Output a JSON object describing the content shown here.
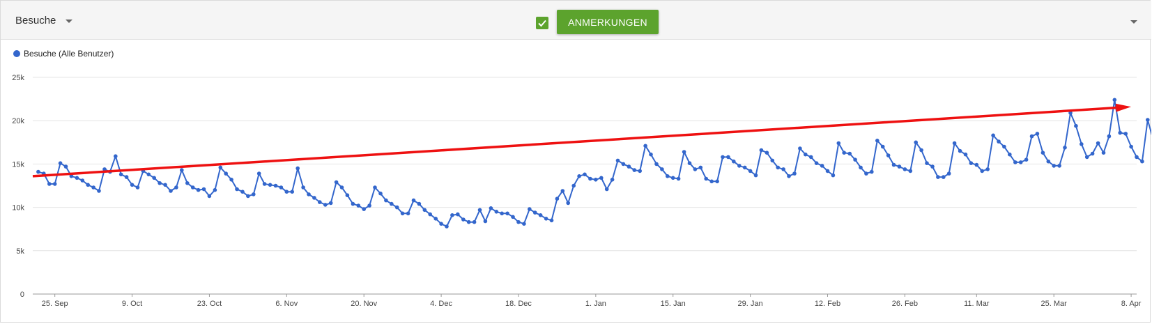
{
  "toolbar": {
    "metric": "Besuche",
    "checkbox_checked": true,
    "annotations_label": "ANMERKUNGEN",
    "accent_color": "#5ca32d"
  },
  "legend": {
    "label": "Besuche (Alle Benutzer)",
    "color": "#3366cc"
  },
  "chart_data": {
    "type": "line",
    "x_start": "2017-09-21",
    "x_end": "2018-04-09",
    "ylim": [
      0,
      25000
    ],
    "y_ticks": [
      {
        "value": 0,
        "label": "0"
      },
      {
        "value": 5000,
        "label": "5k"
      },
      {
        "value": 10000,
        "label": "10k"
      },
      {
        "value": 15000,
        "label": "15k"
      },
      {
        "value": 20000,
        "label": "20k"
      },
      {
        "value": 25000,
        "label": "25k"
      }
    ],
    "x_ticks": [
      {
        "date": "2017-09-25",
        "label": "25. Sep"
      },
      {
        "date": "2017-10-09",
        "label": "9. Oct"
      },
      {
        "date": "2017-10-23",
        "label": "23. Oct"
      },
      {
        "date": "2017-11-06",
        "label": "6. Nov"
      },
      {
        "date": "2017-11-20",
        "label": "20. Nov"
      },
      {
        "date": "2017-12-04",
        "label": "4. Dec"
      },
      {
        "date": "2017-12-18",
        "label": "18. Dec"
      },
      {
        "date": "2018-01-01",
        "label": "1. Jan"
      },
      {
        "date": "2018-01-15",
        "label": "15. Jan"
      },
      {
        "date": "2018-01-29",
        "label": "29. Jan"
      },
      {
        "date": "2018-02-12",
        "label": "12. Feb"
      },
      {
        "date": "2018-02-26",
        "label": "26. Feb"
      },
      {
        "date": "2018-03-11",
        "label": "11. Mar"
      },
      {
        "date": "2018-03-25",
        "label": "25. Mar"
      },
      {
        "date": "2018-04-08",
        "label": "8. Apr"
      }
    ],
    "grid": true,
    "series": [
      {
        "name": "Besuche (Alle Benutzer)",
        "color": "#3366cc",
        "start_date": "2017-09-22",
        "values": [
          14100,
          13900,
          12700,
          12700,
          15100,
          14700,
          13600,
          13400,
          13100,
          12600,
          12300,
          11900,
          14400,
          14100,
          15900,
          13800,
          13500,
          12600,
          12300,
          14200,
          13800,
          13400,
          12800,
          12600,
          11900,
          12300,
          14300,
          12800,
          12300,
          12000,
          12100,
          11300,
          12000,
          14600,
          13900,
          13200,
          12100,
          11800,
          11300,
          11500,
          13900,
          12700,
          12600,
          12500,
          12300,
          11800,
          11800,
          14500,
          12300,
          11500,
          11100,
          10600,
          10300,
          10500,
          12900,
          12300,
          11400,
          10400,
          10200,
          9800,
          10200,
          12300,
          11600,
          10800,
          10400,
          10000,
          9300,
          9300,
          10800,
          10400,
          9700,
          9200,
          8700,
          8100,
          7800,
          9100,
          9200,
          8600,
          8300,
          8300,
          9700,
          8400,
          9900,
          9500,
          9300,
          9300,
          8900,
          8300,
          8100,
          9800,
          9400,
          9100,
          8700,
          8500,
          11000,
          11900,
          10500,
          12500,
          13600,
          13800,
          13300,
          13200,
          13400,
          12100,
          13200,
          15400,
          15000,
          14700,
          14300,
          14200,
          17100,
          16100,
          15000,
          14400,
          13600,
          13400,
          13300,
          16400,
          15100,
          14400,
          14600,
          13300,
          13000,
          13000,
          15800,
          15800,
          15300,
          14800,
          14600,
          14200,
          13700,
          16600,
          16300,
          15400,
          14600,
          14400,
          13600,
          13900,
          16800,
          16100,
          15800,
          15100,
          14800,
          14200,
          13700,
          17400,
          16300,
          16200,
          15500,
          14600,
          13900,
          14100,
          17700,
          17000,
          16000,
          14900,
          14700,
          14400,
          14200,
          17500,
          16600,
          15100,
          14700,
          13500,
          13500,
          13900,
          17400,
          16500,
          16100,
          15100,
          14900,
          14200,
          14400,
          18300,
          17600,
          17000,
          16100,
          15200,
          15200,
          15500,
          18200,
          18500,
          16300,
          15300,
          14800,
          14800,
          16900,
          20900,
          19400,
          17300,
          15800,
          16200,
          17400,
          16300,
          18200,
          22400,
          18600,
          18500,
          17000,
          15800,
          15300,
          20100,
          17800
        ]
      }
    ],
    "trend": {
      "color": "#ee1111",
      "from": {
        "date": "2017-09-21",
        "value": 13600
      },
      "to": {
        "date": "2018-04-08",
        "value": 21600
      }
    }
  }
}
